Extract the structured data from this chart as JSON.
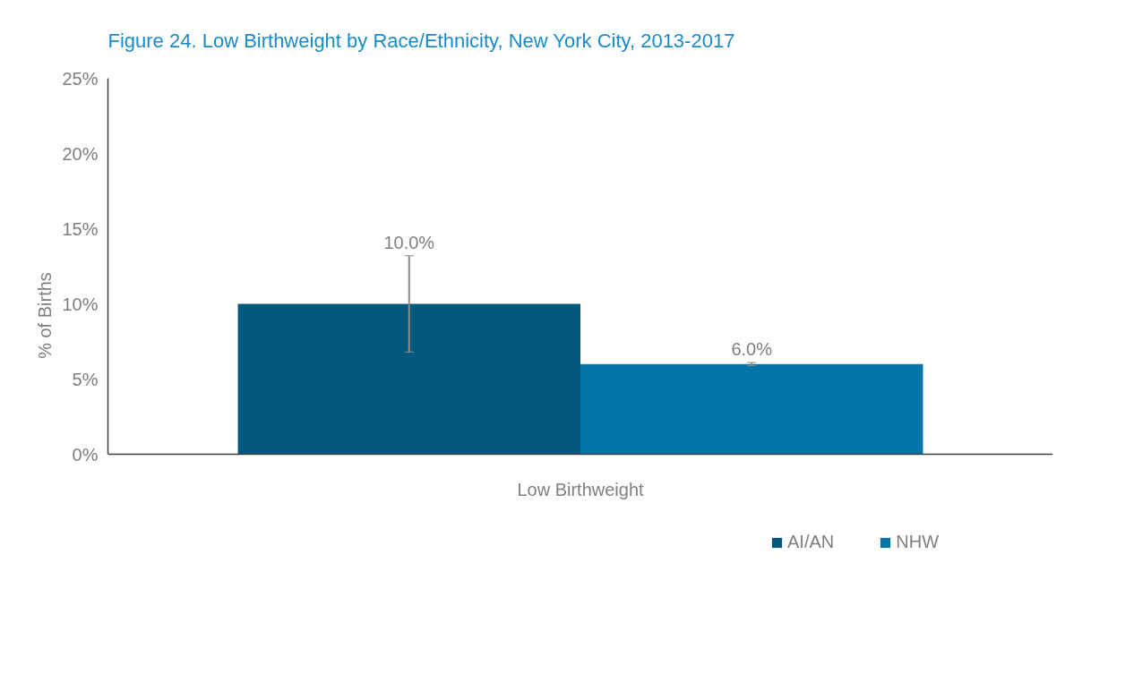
{
  "chart_data": {
    "type": "bar",
    "title": "Figure 24. Low Birthweight by Race/Ethnicity, New York City, 2013-2017",
    "ylabel": "% of Births",
    "categories": [
      "Low Birthweight"
    ],
    "series": [
      {
        "name": "AI/AN",
        "color": "#02587d",
        "values": [
          10.0
        ],
        "errors": [
          [
            6.8,
            13.2
          ]
        ],
        "value_labels": [
          "10.0%"
        ]
      },
      {
        "name": "NHW",
        "color": "#0174a8",
        "values": [
          6.0
        ],
        "errors": [
          [
            5.9,
            6.1
          ]
        ],
        "value_labels": [
          "6.0%"
        ]
      }
    ],
    "ylim": [
      0,
      25
    ],
    "yticks": [
      {
        "value": 0,
        "label": "0%"
      },
      {
        "value": 5,
        "label": "5%"
      },
      {
        "value": 10,
        "label": "10%"
      },
      {
        "value": 15,
        "label": "15%"
      },
      {
        "value": 20,
        "label": "20%"
      },
      {
        "value": 25,
        "label": "25%"
      }
    ],
    "grid": false,
    "legend": "bottom right"
  }
}
